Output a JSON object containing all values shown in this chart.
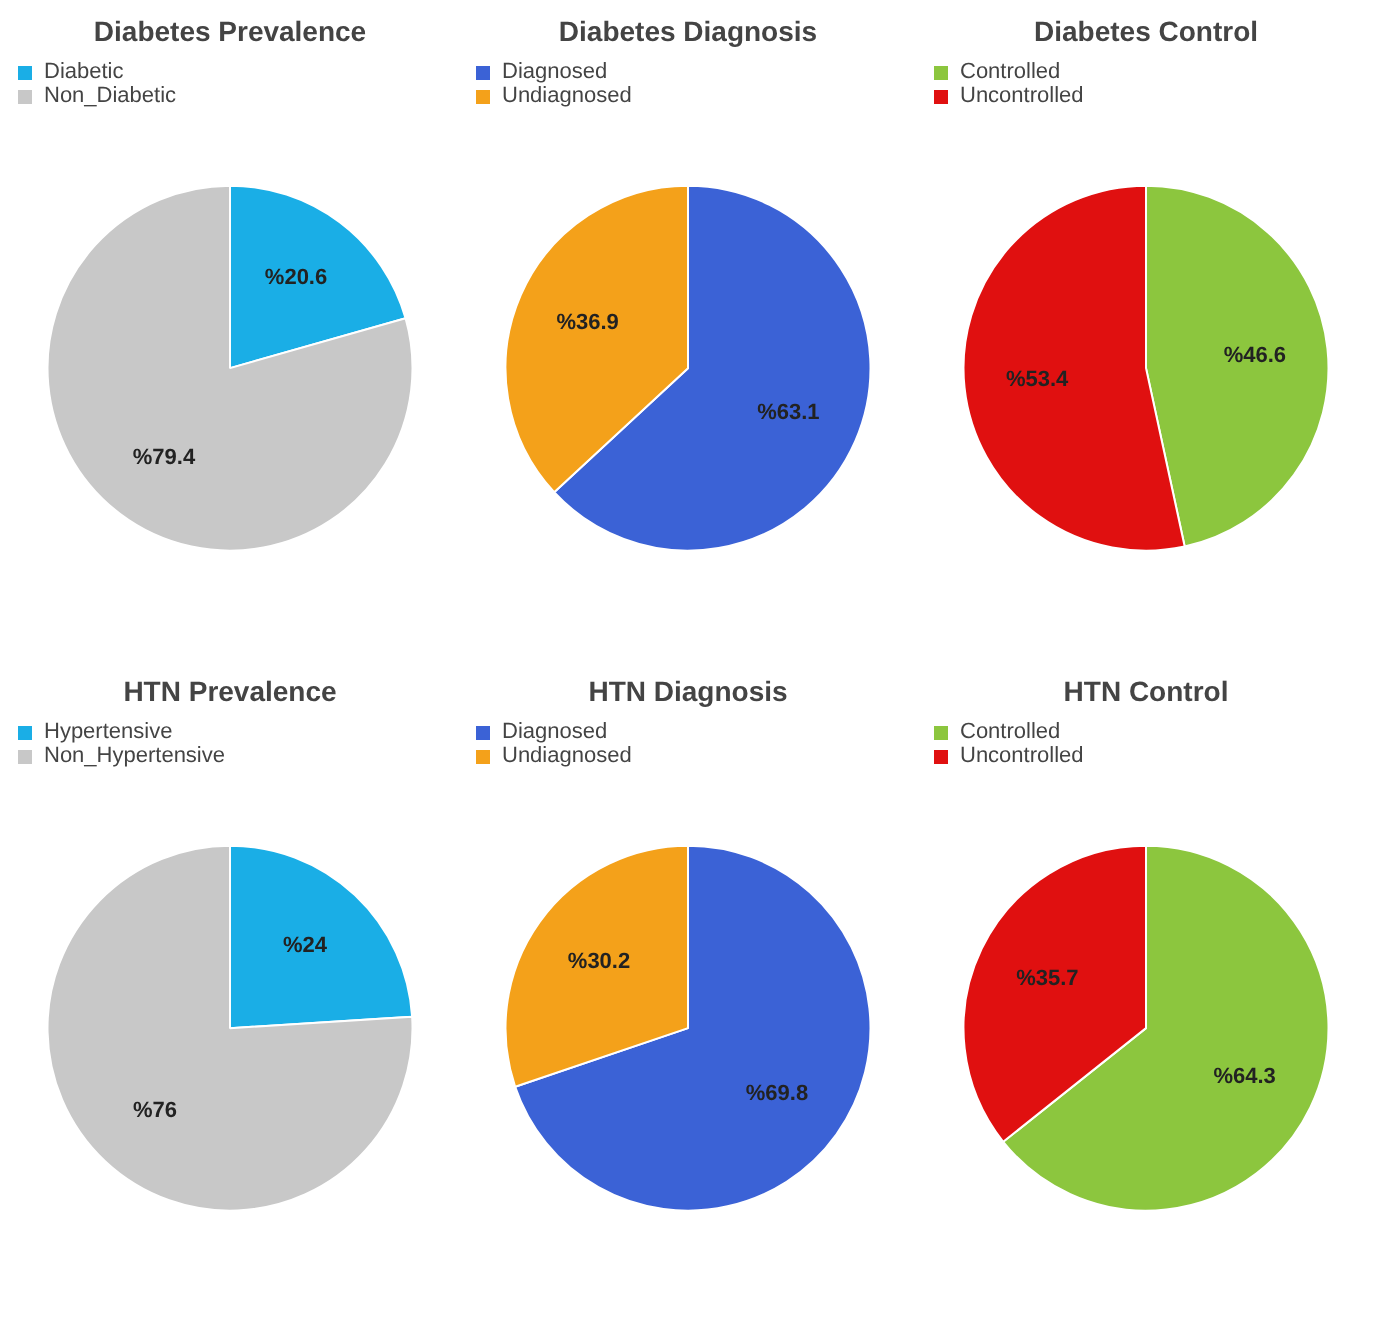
{
  "chart_data": [
    {
      "type": "pie",
      "title": "Diabetes Prevalence",
      "categories": [
        "Diabetic",
        "Non_Diabetic"
      ],
      "values": [
        20.6,
        79.4
      ],
      "colors": [
        "#1aaee6",
        "#c8c8c8"
      ],
      "value_labels": [
        "%20.6",
        "%79.4"
      ],
      "legend": "top left"
    },
    {
      "type": "pie",
      "title": "Diabetes Diagnosis",
      "categories": [
        "Diagnosed",
        "Undiagnosed"
      ],
      "values": [
        63.1,
        36.9
      ],
      "colors": [
        "#3b62d6",
        "#f4a11a"
      ],
      "value_labels": [
        "%63.1",
        "%36.9"
      ],
      "legend": "top left"
    },
    {
      "type": "pie",
      "title": "Diabetes Control",
      "categories": [
        "Controlled",
        "Uncontrolled"
      ],
      "values": [
        46.6,
        53.4
      ],
      "colors": [
        "#8cc63e",
        "#e01010"
      ],
      "value_labels": [
        "%46.6",
        "%53.4"
      ],
      "legend": "top left"
    },
    {
      "type": "pie",
      "title": "HTN Prevalence",
      "categories": [
        "Hypertensive",
        "Non_Hypertensive"
      ],
      "values": [
        24,
        76
      ],
      "colors": [
        "#1aaee6",
        "#c8c8c8"
      ],
      "value_labels": [
        "%24",
        "%76"
      ],
      "legend": "top left"
    },
    {
      "type": "pie",
      "title": "HTN Diagnosis",
      "categories": [
        "Diagnosed",
        "Undiagnosed"
      ],
      "values": [
        69.8,
        30.2
      ],
      "colors": [
        "#3b62d6",
        "#f4a11a"
      ],
      "value_labels": [
        "%69.8",
        "%30.2"
      ],
      "legend": "top left"
    },
    {
      "type": "pie",
      "title": "HTN Control",
      "categories": [
        "Controlled",
        "Uncontrolled"
      ],
      "values": [
        64.3,
        35.7
      ],
      "colors": [
        "#8cc63e",
        "#e01010"
      ],
      "value_labels": [
        "%64.3",
        "%35.7"
      ],
      "legend": "top left"
    }
  ]
}
